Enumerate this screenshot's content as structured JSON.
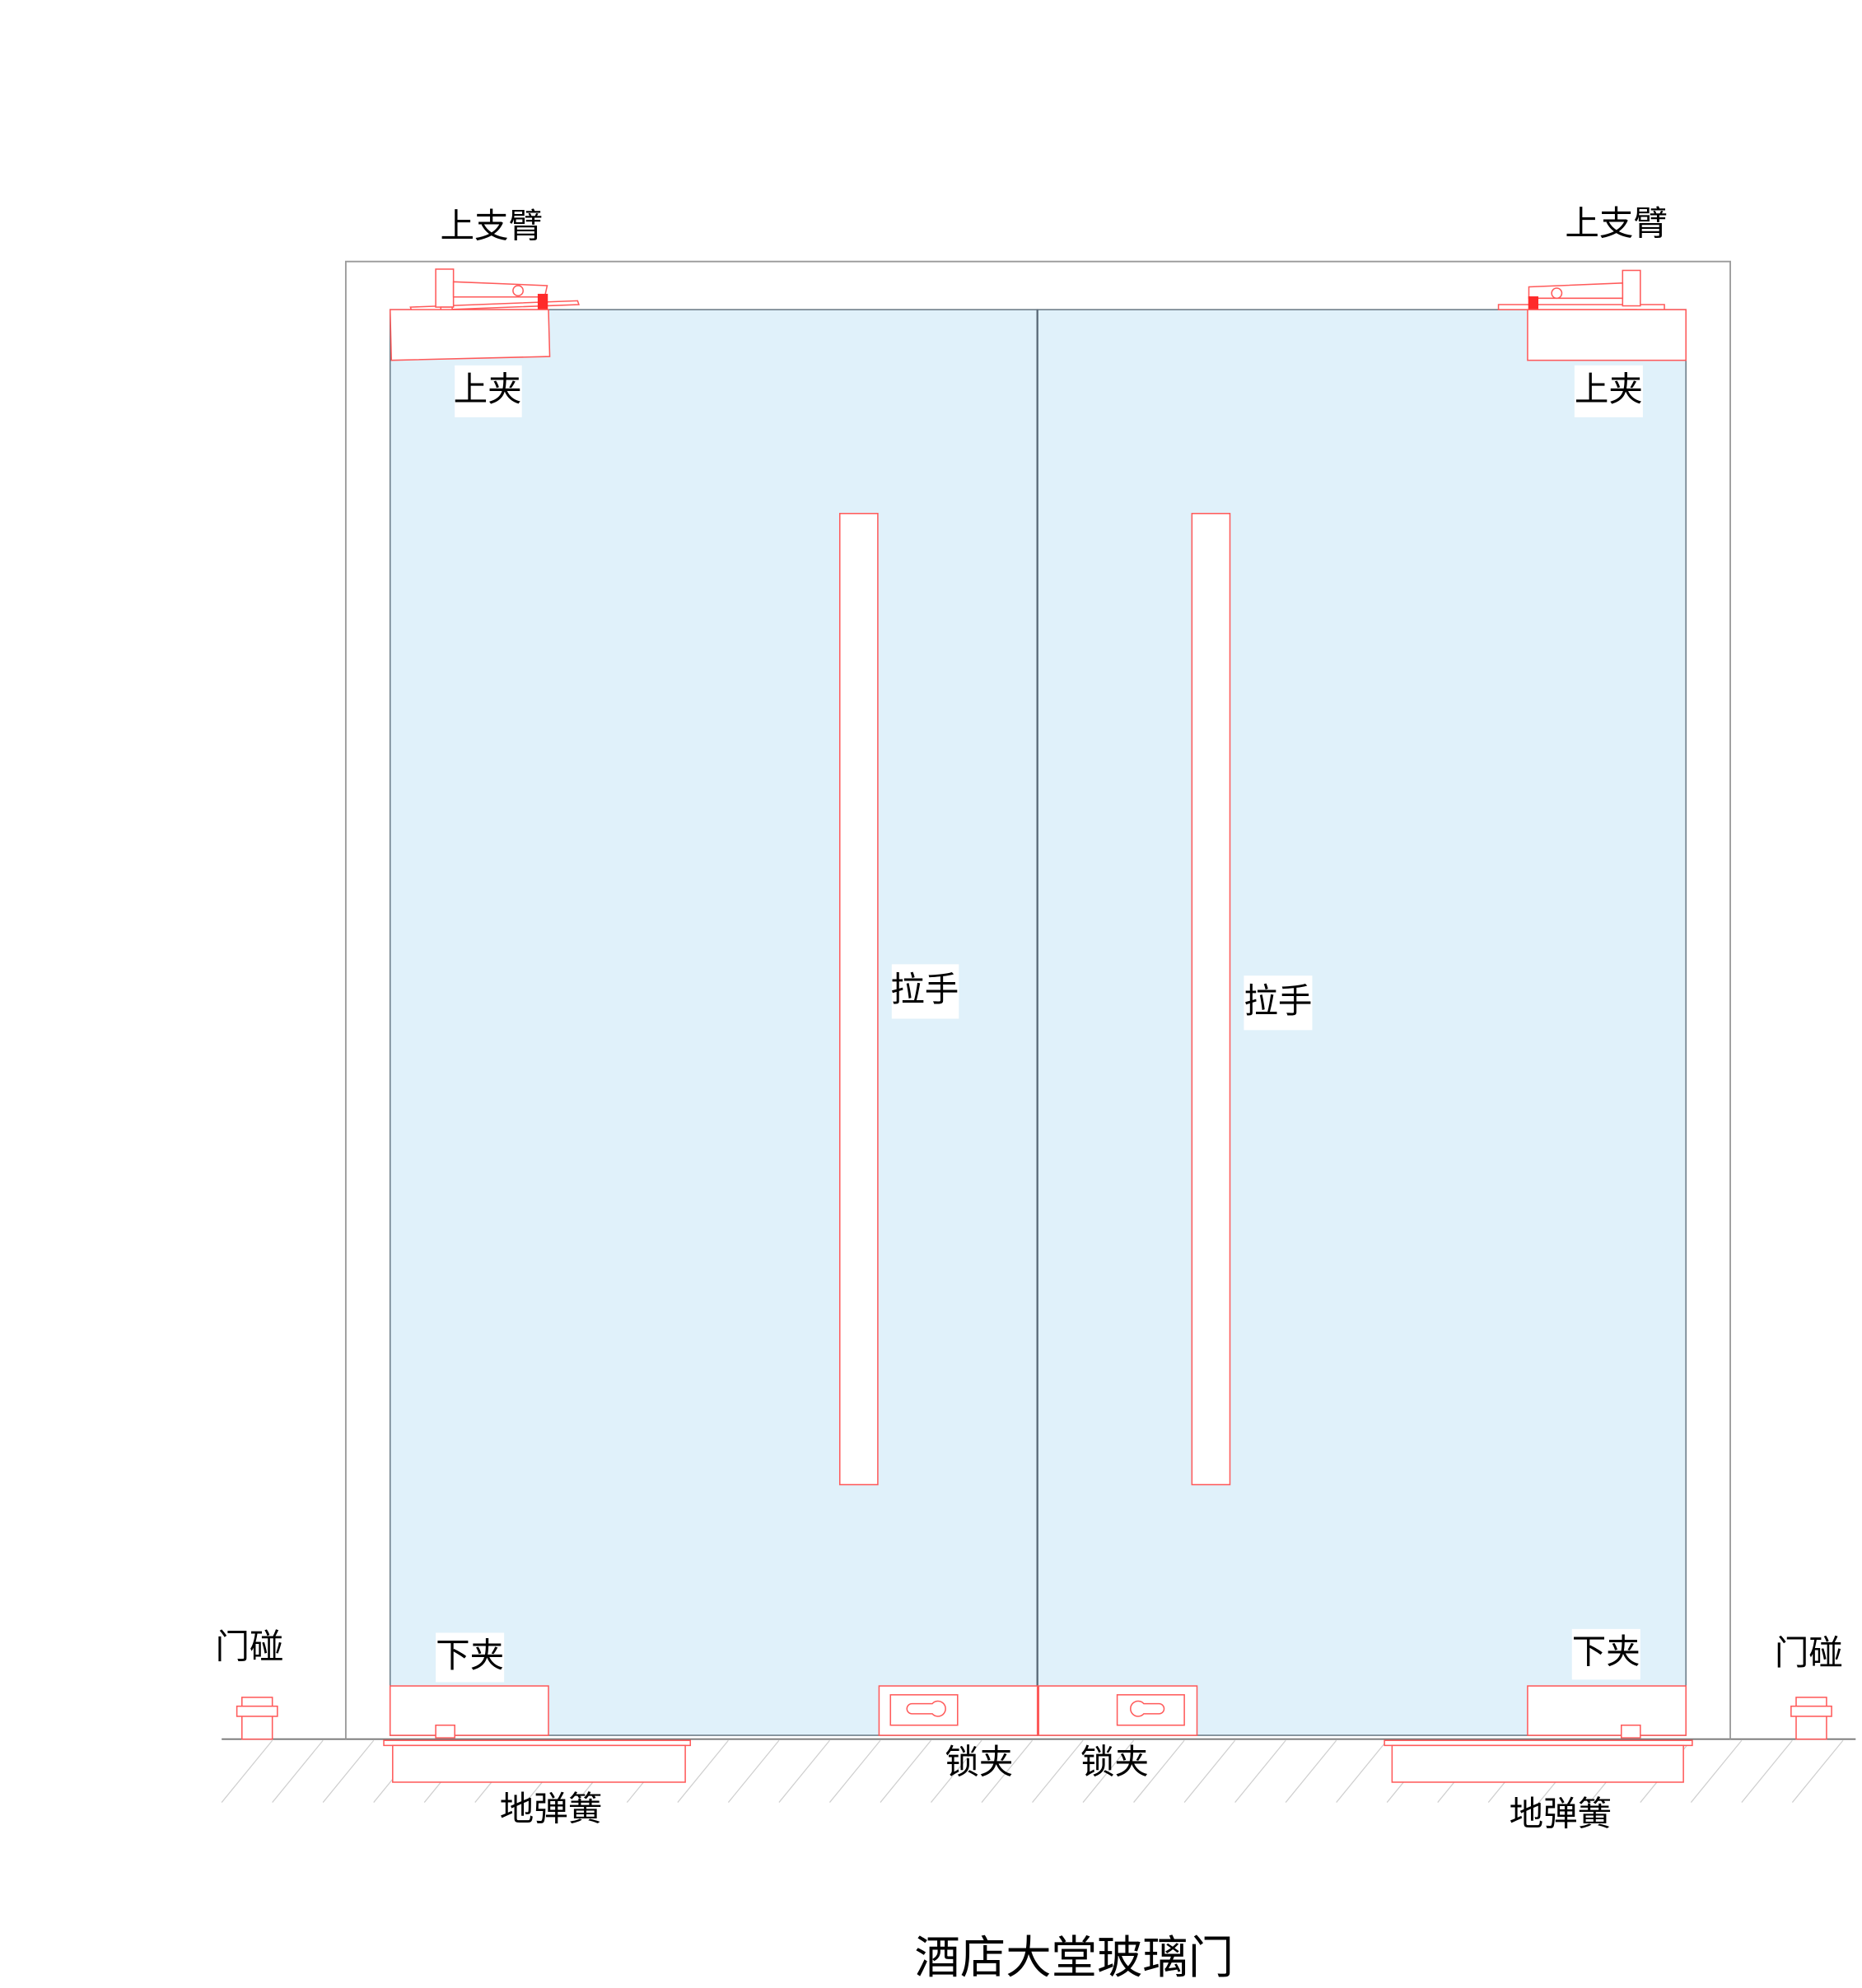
{
  "title": "酒店大堂玻璃门",
  "labels": {
    "top_arm_left": "上支臂",
    "top_arm_right": "上支臂",
    "top_clamp_left": "上夹",
    "top_clamp_right": "上夹",
    "handle_left": "拉手",
    "handle_right": "拉手",
    "bottom_clamp_left": "下夹",
    "bottom_clamp_right": "下夹",
    "door_stop_left": "门碰",
    "door_stop_right": "门碰",
    "lock_clamp_left": "锁夹",
    "lock_clamp_right": "锁夹",
    "floor_spring_left": "地弹簧",
    "floor_spring_right": "地弹簧"
  },
  "colors": {
    "glass": "#e0f1fa",
    "hardware_outline": "#ff5a5a",
    "frame": "#9a9a9a"
  }
}
